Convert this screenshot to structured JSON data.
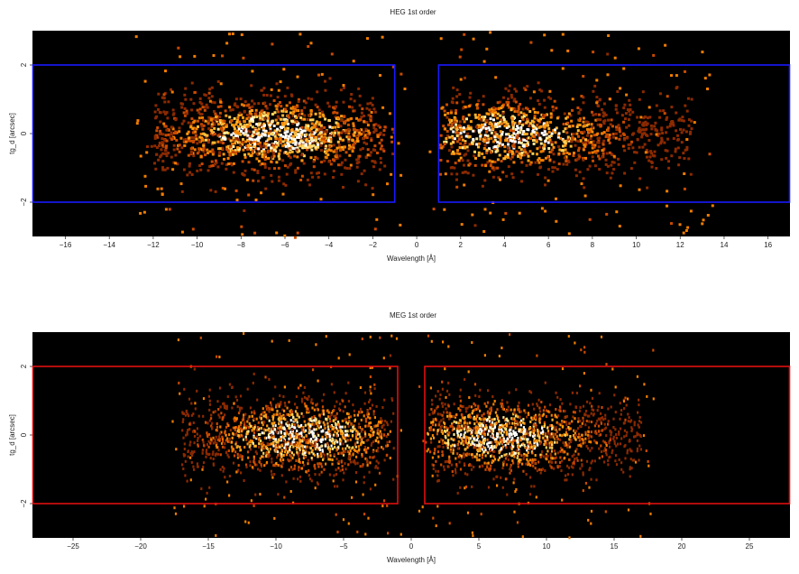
{
  "chart_data": [
    {
      "type": "heatmap",
      "title": "HEG 1st order",
      "xlabel": "Wavelength [Å]",
      "ylabel": "tg_d [arcsec]",
      "xlim": [
        -17.5,
        17.0
      ],
      "ylim": [
        -3.0,
        3.0
      ],
      "xticks": [
        -16,
        -14,
        -12,
        -10,
        -8,
        -6,
        -4,
        -2,
        0,
        2,
        4,
        6,
        8,
        10,
        12,
        14,
        16
      ],
      "yticks": [
        -2,
        0,
        2
      ],
      "colormap": "hot",
      "background": "#000000",
      "grid": false,
      "regions": [
        {
          "x": [
            -17.5,
            -1.0
          ],
          "y": [
            -2.0,
            2.0
          ],
          "color": "#1a1aff"
        },
        {
          "x": [
            1.0,
            17.0
          ],
          "y": [
            -2.0,
            2.0
          ],
          "color": "#1a1aff"
        }
      ],
      "clusters": [
        {
          "xrange": [
            -12.0,
            -1.5
          ],
          "center": -6.5,
          "count_scale": 1.0
        },
        {
          "xrange": [
            1.5,
            12.5
          ],
          "center": 4.0,
          "count_scale": 0.85
        }
      ]
    },
    {
      "type": "heatmap",
      "title": "MEG 1st order",
      "xlabel": "Wavelength [Å]",
      "ylabel": "tg_d [arcsec]",
      "xlim": [
        -28.0,
        28.0
      ],
      "ylim": [
        -3.0,
        3.0
      ],
      "xticks": [
        -25,
        -20,
        -15,
        -10,
        -5,
        0,
        5,
        10,
        15,
        20,
        25
      ],
      "yticks": [
        -2,
        0,
        2
      ],
      "colormap": "hot",
      "background": "#000000",
      "grid": false,
      "regions": [
        {
          "x": [
            -28.0,
            -1.0
          ],
          "y": [
            -2.0,
            2.0
          ],
          "color": "#e01010"
        },
        {
          "x": [
            1.0,
            28.0
          ],
          "y": [
            -2.0,
            2.0
          ],
          "color": "#e01010"
        }
      ],
      "clusters": [
        {
          "xrange": [
            -17.0,
            -1.8
          ],
          "center": -8.0,
          "count_scale": 1.0
        },
        {
          "xrange": [
            1.5,
            17.0
          ],
          "center": 6.5,
          "count_scale": 1.0
        }
      ]
    }
  ]
}
